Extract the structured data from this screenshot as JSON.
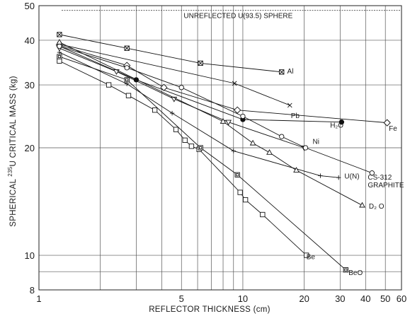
{
  "chart_data": {
    "type": "line",
    "xscale": "log",
    "yscale": "log",
    "xlim": [
      1,
      60
    ],
    "ylim": [
      8,
      50
    ],
    "grid": true,
    "xlabel": "REFLECTOR THICKNESS (cm)",
    "ylabel_parts": [
      "SPHERICAL ",
      "235",
      "U CRITICAL MASS (kg)"
    ],
    "x_ticks": [
      "1",
      "5",
      "10",
      "20",
      "30",
      "40",
      "50",
      "60"
    ],
    "x_tick_values": [
      1,
      5,
      10,
      20,
      30,
      40,
      50,
      60
    ],
    "y_ticks": [
      "8",
      "10",
      "20",
      "30",
      "40",
      "50"
    ],
    "y_tick_values": [
      8,
      10,
      20,
      30,
      40,
      50
    ],
    "x_grid_values": [
      2,
      3,
      4,
      5,
      6,
      7,
      8,
      9,
      10,
      20,
      30,
      40,
      50
    ],
    "y_grid_values": [
      9,
      10,
      20,
      30,
      40
    ],
    "reference_line": {
      "label": "UNREFLECTED U(93.5) SPHERE",
      "y": 48.5
    },
    "series": [
      {
        "name": "Al",
        "marker": "boxx",
        "x": [
          1.26,
          2.7,
          6.2,
          15.5
        ],
        "y": [
          41.5,
          38.0,
          34.5,
          32.6
        ],
        "label_at": [
          16.5,
          32.3
        ]
      },
      {
        "name": "Pb",
        "marker": "x",
        "x": [
          1.26,
          9.1,
          17.0
        ],
        "y": [
          39.0,
          30.3,
          26.3
        ],
        "label_at": [
          17.2,
          24.2
        ]
      },
      {
        "name": "H₂O",
        "marker": "dot",
        "x": [
          1.26,
          3.0,
          10.0,
          30.5
        ],
        "y": [
          38.5,
          31.0,
          24.0,
          23.6
        ],
        "label_at": [
          26.8,
          22.8
        ]
      },
      {
        "name": "Fe",
        "marker": "diamond",
        "x": [
          1.26,
          2.7,
          4.1,
          9.4,
          51.0
        ],
        "y": [
          38.8,
          34.0,
          29.5,
          25.5,
          23.5
        ],
        "label_at": [
          52.0,
          22.3
        ]
      },
      {
        "name": "Ni",
        "marker": "tridown",
        "x": [
          1.26,
          2.4,
          4.6,
          8.5,
          20.0
        ],
        "y": [
          38.0,
          32.7,
          27.4,
          23.6,
          20.0
        ],
        "label_at": [
          22.0,
          20.5
        ]
      },
      {
        "name": "CS-312 GRAPHITE",
        "marker": "circle",
        "x": [
          1.26,
          2.7,
          5.0,
          10.0,
          15.5,
          20.3,
          43.0
        ],
        "y": [
          38.5,
          33.5,
          29.5,
          24.5,
          21.5,
          20.0,
          17.0
        ],
        "label_lines": [
          "CS-312",
          "GRAPHITE"
        ],
        "label_at": [
          41.0,
          16.3
        ]
      },
      {
        "name": "U(N)",
        "marker": "plus",
        "x": [
          1.26,
          2.7,
          4.5,
          9.0,
          24.0,
          29.5
        ],
        "y": [
          37.0,
          30.2,
          25.0,
          19.6,
          16.7,
          16.5
        ],
        "label_at": [
          31.5,
          16.4
        ]
      },
      {
        "name": "D₂ O",
        "marker": "triangle",
        "x": [
          1.26,
          8.0,
          11.2,
          13.5,
          18.3,
          38.5
        ],
        "y": [
          39.5,
          23.7,
          20.6,
          19.4,
          17.3,
          13.8
        ],
        "label_at": [
          41.5,
          13.5
        ]
      },
      {
        "name": "Be",
        "marker": "square",
        "x": [
          1.26,
          2.2,
          2.75,
          3.7,
          4.7,
          5.2,
          5.6,
          6.1,
          9.7,
          10.3,
          12.5,
          20.5
        ],
        "y": [
          35.0,
          30.0,
          28.0,
          25.5,
          22.5,
          21.0,
          20.2,
          19.8,
          15.0,
          14.3,
          13.0,
          10.0
        ],
        "label_at": [
          20.5,
          9.75
        ]
      },
      {
        "name": "BeO",
        "marker": "boxsq",
        "x": [
          1.26,
          2.7,
          6.2,
          9.4,
          32.0
        ],
        "y": [
          36.0,
          31.0,
          20.0,
          16.8,
          9.1
        ],
        "label_at": [
          33.0,
          8.8
        ]
      }
    ]
  }
}
